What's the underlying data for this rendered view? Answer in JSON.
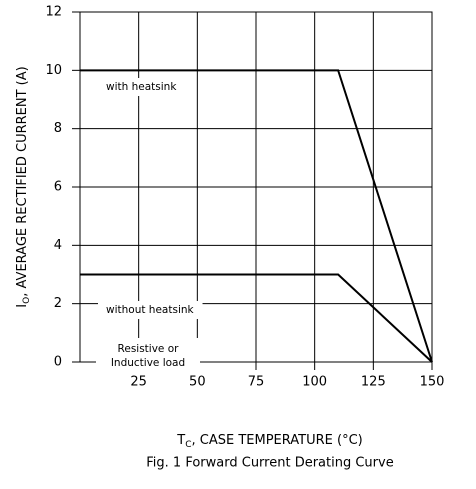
{
  "chart_data": {
    "type": "line",
    "title": "Fig. 1 Forward Current Derating Curve",
    "xlabel": {
      "symbol": "T",
      "subscript": "C",
      "text": ", CASE TEMPERATURE (°C)"
    },
    "ylabel": {
      "symbol": "I",
      "subscript": "O",
      "text": ", AVERAGE RECTIFIED CURRENT (A)"
    },
    "series": [
      {
        "name": "with heatsink",
        "color": "#000000",
        "x": [
          0,
          110,
          150
        ],
        "values": [
          10,
          10,
          0
        ]
      },
      {
        "name": "without heatsink",
        "color": "#000000",
        "x": [
          0,
          110,
          150
        ],
        "values": [
          3,
          3,
          0
        ]
      }
    ],
    "annotations": [
      [
        "Resistive or",
        "Inductive load"
      ]
    ],
    "xlim": [
      0,
      150
    ],
    "xticks": [
      25,
      50,
      75,
      100,
      125,
      150
    ],
    "ylim": [
      0,
      12
    ],
    "yticks": [
      0,
      2,
      4,
      6,
      8,
      10,
      12
    ],
    "grid": true
  }
}
